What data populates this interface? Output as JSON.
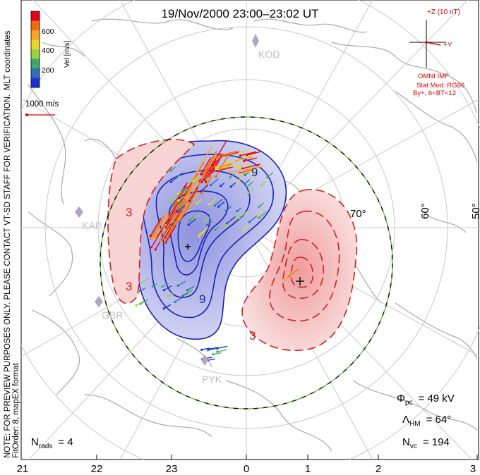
{
  "title": "19/Nov/2000 23:00–23:02 UT",
  "side_note": {
    "line1": "NOTE: FOR PREVIEW PURPOSES ONLY. PLEASE CONTACT VT-SD STAFF FOR VERIFICATION.",
    "line2": "FitOrder: 8, mapEX format"
  },
  "colorbar": {
    "coordinates": "MLT coordinates",
    "label": "Vel [m/s]",
    "ticks": [
      "600",
      "400",
      "200"
    ],
    "colors": [
      "#e6001a",
      "#f26d10",
      "#f5a623",
      "#e8d82a",
      "#9bd23c",
      "#3fa86b",
      "#2f6fb4",
      "#1c30d8"
    ]
  },
  "scale_vector": {
    "label": "1000 m/s",
    "color": "#d40000"
  },
  "imf": {
    "plus_z": "+Z (10 nT)",
    "plus_y": "+Y",
    "source": "OMNI IMF",
    "stat_mod": "Stat Mod: RG96",
    "bin": "By+, 6<BT<12",
    "color": "#d40000"
  },
  "stations": [
    "KOD",
    "KAP",
    "GBR",
    "PYK"
  ],
  "latitude_labels": [
    "70°",
    "60°",
    "50°"
  ],
  "contour_labels": {
    "negative": "9",
    "positive": "3"
  },
  "stats": {
    "phi_pc": {
      "label": "Φ",
      "sub": "pc",
      "value": "= 49 kV"
    },
    "lambda_hm": {
      "label": "Λ",
      "sub": "HM",
      "value": "= 64°"
    },
    "n_vc": {
      "label": "N",
      "sub": "vc",
      "value": "= 194"
    },
    "n_rads": {
      "label": "N",
      "sub": "rads",
      "value": "= 4"
    }
  },
  "mlt_ticks": [
    "21",
    "22",
    "23",
    "0",
    "1",
    "2",
    "3"
  ],
  "colors": {
    "negative_fill": "#c9cdf2",
    "negative_line": "#1a22b0",
    "positive_fill": "#f8d2d2",
    "positive_line": "#d21f1f",
    "boundary": "#6fbf3a",
    "grid": "#bfbfbf",
    "coast": "#a9a9a9",
    "station": "#9a8aa8"
  }
}
